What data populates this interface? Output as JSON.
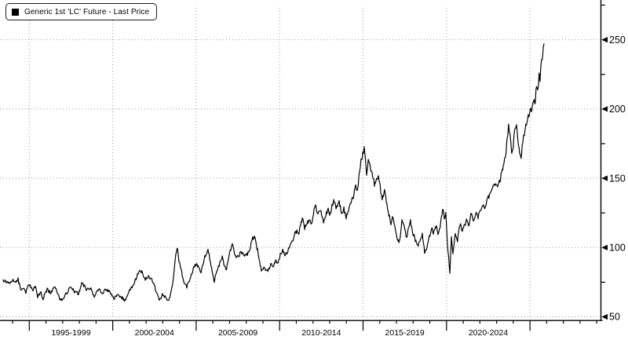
{
  "legend": {
    "label": "Generic 1st 'LC' Future - Last Price",
    "swatch_color": "#000000",
    "position": "top-left"
  },
  "chart_data": {
    "type": "line",
    "title": "Generic 1st 'LC' Future - Last Price",
    "grid": {
      "style": "dotted",
      "color": "#9a9a9a",
      "on": true
    },
    "x_axis": {
      "unit": "year",
      "major_tick_years": [
        1995,
        2000,
        2005,
        2010,
        2015,
        2020,
        2025
      ],
      "minor_tick_step_years": 1,
      "render_year_range": [
        1993.4,
        2029.5
      ],
      "period_labels": [
        {
          "label": "1995-1999",
          "center_year": 1997.5
        },
        {
          "label": "2000-2004",
          "center_year": 2002.5
        },
        {
          "label": "2005-2009",
          "center_year": 2007.5
        },
        {
          "label": "2010-2014",
          "center_year": 2012.5
        },
        {
          "label": "2015-2019",
          "center_year": 2017.5
        },
        {
          "label": "2020-2024",
          "center_year": 2022.5
        }
      ]
    },
    "y_axis": {
      "side": "right",
      "ticks": [
        50,
        100,
        150,
        200,
        250
      ],
      "minor_ticks": [
        75,
        125,
        175,
        225,
        275
      ],
      "range_shown": [
        47,
        278
      ]
    },
    "series": [
      {
        "name": "Generic 1st 'LC' Future - Last Price",
        "color": "#000000",
        "points": [
          [
            1993.43,
            76
          ],
          [
            1993.62,
            75
          ],
          [
            1993.81,
            74
          ],
          [
            1994.0,
            76
          ],
          [
            1994.19,
            75
          ],
          [
            1994.33,
            77
          ],
          [
            1994.47,
            70
          ],
          [
            1994.66,
            71
          ],
          [
            1994.8,
            68
          ],
          [
            1994.99,
            74
          ],
          [
            1995.13,
            70
          ],
          [
            1995.22,
            68
          ],
          [
            1995.36,
            73
          ],
          [
            1995.5,
            64
          ],
          [
            1995.69,
            68
          ],
          [
            1995.83,
            63
          ],
          [
            1996.07,
            70
          ],
          [
            1996.3,
            67
          ],
          [
            1996.54,
            72
          ],
          [
            1996.68,
            68
          ],
          [
            1996.87,
            62
          ],
          [
            1997.01,
            63
          ],
          [
            1997.24,
            67
          ],
          [
            1997.48,
            72
          ],
          [
            1997.71,
            68
          ],
          [
            1997.95,
            67
          ],
          [
            1998.18,
            75
          ],
          [
            1998.42,
            69
          ],
          [
            1998.66,
            71
          ],
          [
            1998.89,
            64
          ],
          [
            1999.13,
            70
          ],
          [
            1999.36,
            67
          ],
          [
            1999.6,
            70
          ],
          [
            1999.83,
            68
          ],
          [
            2000.07,
            63
          ],
          [
            2000.3,
            66
          ],
          [
            2000.54,
            64
          ],
          [
            2000.77,
            61
          ],
          [
            2001.01,
            70
          ],
          [
            2001.24,
            72
          ],
          [
            2001.48,
            81
          ],
          [
            2001.71,
            83
          ],
          [
            2001.95,
            77
          ],
          [
            2002.18,
            79
          ],
          [
            2002.42,
            75
          ],
          [
            2002.56,
            70
          ],
          [
            2002.79,
            62
          ],
          [
            2002.98,
            66
          ],
          [
            2003.17,
            64
          ],
          [
            2003.36,
            61
          ],
          [
            2003.5,
            68
          ],
          [
            2003.64,
            78
          ],
          [
            2003.78,
            95
          ],
          [
            2003.88,
            100
          ],
          [
            2003.97,
            90
          ],
          [
            2004.06,
            86
          ],
          [
            2004.21,
            78
          ],
          [
            2004.35,
            73
          ],
          [
            2004.44,
            72
          ],
          [
            2004.63,
            78
          ],
          [
            2004.82,
            84
          ],
          [
            2005.0,
            89
          ],
          [
            2005.15,
            85
          ],
          [
            2005.29,
            82
          ],
          [
            2005.48,
            92
          ],
          [
            2005.71,
            98
          ],
          [
            2005.85,
            90
          ],
          [
            2005.99,
            80
          ],
          [
            2006.09,
            76
          ],
          [
            2006.23,
            83
          ],
          [
            2006.42,
            89
          ],
          [
            2006.56,
            93
          ],
          [
            2006.7,
            87
          ],
          [
            2006.79,
            83
          ],
          [
            2006.93,
            91
          ],
          [
            2007.08,
            99
          ],
          [
            2007.17,
            102
          ],
          [
            2007.26,
            98
          ],
          [
            2007.4,
            92
          ],
          [
            2007.55,
            94
          ],
          [
            2007.69,
            97
          ],
          [
            2007.83,
            95
          ],
          [
            2007.97,
            94
          ],
          [
            2008.11,
            96
          ],
          [
            2008.25,
            101
          ],
          [
            2008.39,
            107
          ],
          [
            2008.49,
            108
          ],
          [
            2008.58,
            103
          ],
          [
            2008.68,
            98
          ],
          [
            2008.77,
            91
          ],
          [
            2008.91,
            83
          ],
          [
            2009.05,
            85
          ],
          [
            2009.19,
            84
          ],
          [
            2009.33,
            84
          ],
          [
            2009.47,
            88
          ],
          [
            2009.62,
            87
          ],
          [
            2009.76,
            90
          ],
          [
            2009.9,
            89
          ],
          [
            2010.04,
            95
          ],
          [
            2010.18,
            98
          ],
          [
            2010.32,
            94
          ],
          [
            2010.46,
            97
          ],
          [
            2010.6,
            101
          ],
          [
            2010.74,
            104
          ],
          [
            2010.88,
            109
          ],
          [
            2011.03,
            112
          ],
          [
            2011.12,
            109
          ],
          [
            2011.26,
            117
          ],
          [
            2011.36,
            121
          ],
          [
            2011.5,
            114
          ],
          [
            2011.64,
            118
          ],
          [
            2011.78,
            120
          ],
          [
            2011.92,
            116
          ],
          [
            2012.06,
            127
          ],
          [
            2012.16,
            130
          ],
          [
            2012.3,
            123
          ],
          [
            2012.44,
            128
          ],
          [
            2012.63,
            119
          ],
          [
            2012.77,
            124
          ],
          [
            2012.91,
            128
          ],
          [
            2013.0,
            123
          ],
          [
            2013.14,
            130
          ],
          [
            2013.24,
            134
          ],
          [
            2013.38,
            128
          ],
          [
            2013.57,
            133
          ],
          [
            2013.71,
            125
          ],
          [
            2013.85,
            128
          ],
          [
            2013.99,
            122
          ],
          [
            2014.13,
            127
          ],
          [
            2014.27,
            132
          ],
          [
            2014.41,
            137
          ],
          [
            2014.56,
            146
          ],
          [
            2014.65,
            140
          ],
          [
            2014.79,
            155
          ],
          [
            2014.88,
            162
          ],
          [
            2014.98,
            167
          ],
          [
            2015.07,
            171
          ],
          [
            2015.17,
            160
          ],
          [
            2015.21,
            152
          ],
          [
            2015.31,
            164
          ],
          [
            2015.4,
            160
          ],
          [
            2015.54,
            154
          ],
          [
            2015.68,
            146
          ],
          [
            2015.82,
            149
          ],
          [
            2015.92,
            151
          ],
          [
            2016.06,
            141
          ],
          [
            2016.15,
            135
          ],
          [
            2016.29,
            142
          ],
          [
            2016.43,
            131
          ],
          [
            2016.58,
            122
          ],
          [
            2016.67,
            118
          ],
          [
            2016.76,
            122
          ],
          [
            2016.86,
            117
          ],
          [
            2017.0,
            108
          ],
          [
            2017.14,
            104
          ],
          [
            2017.23,
            108
          ],
          [
            2017.33,
            121
          ],
          [
            2017.47,
            114
          ],
          [
            2017.61,
            108
          ],
          [
            2017.75,
            115
          ],
          [
            2017.84,
            119
          ],
          [
            2017.98,
            111
          ],
          [
            2018.13,
            105
          ],
          [
            2018.27,
            101
          ],
          [
            2018.41,
            105
          ],
          [
            2018.55,
            109
          ],
          [
            2018.69,
            97
          ],
          [
            2018.83,
            99
          ],
          [
            2018.97,
            108
          ],
          [
            2019.11,
            114
          ],
          [
            2019.21,
            110
          ],
          [
            2019.3,
            113
          ],
          [
            2019.4,
            116
          ],
          [
            2019.49,
            109
          ],
          [
            2019.58,
            113
          ],
          [
            2019.68,
            121
          ],
          [
            2019.77,
            129
          ],
          [
            2019.87,
            121
          ],
          [
            2019.96,
            124
          ],
          [
            2020.05,
            103
          ],
          [
            2020.2,
            82
          ],
          [
            2020.29,
            107
          ],
          [
            2020.38,
            95
          ],
          [
            2020.52,
            111
          ],
          [
            2020.66,
            105
          ],
          [
            2020.81,
            117
          ],
          [
            2020.95,
            112
          ],
          [
            2021.09,
            116
          ],
          [
            2021.23,
            121
          ],
          [
            2021.32,
            115
          ],
          [
            2021.46,
            124
          ],
          [
            2021.6,
            120
          ],
          [
            2021.75,
            125
          ],
          [
            2021.89,
            122
          ],
          [
            2022.03,
            126
          ],
          [
            2022.17,
            131
          ],
          [
            2022.26,
            128
          ],
          [
            2022.4,
            133
          ],
          [
            2022.54,
            137
          ],
          [
            2022.68,
            142
          ],
          [
            2022.83,
            147
          ],
          [
            2022.97,
            146
          ],
          [
            2023.06,
            143
          ],
          [
            2023.2,
            149
          ],
          [
            2023.34,
            155
          ],
          [
            2023.44,
            160
          ],
          [
            2023.53,
            166
          ],
          [
            2023.63,
            178
          ],
          [
            2023.72,
            187
          ],
          [
            2023.81,
            180
          ],
          [
            2023.91,
            166
          ],
          [
            2024.0,
            174
          ],
          [
            2024.1,
            186
          ],
          [
            2024.19,
            188
          ],
          [
            2024.28,
            178
          ],
          [
            2024.38,
            168
          ],
          [
            2024.47,
            166
          ],
          [
            2024.57,
            176
          ],
          [
            2024.66,
            182
          ],
          [
            2024.75,
            188
          ],
          [
            2024.85,
            192
          ],
          [
            2024.94,
            196
          ],
          [
            2025.03,
            201
          ],
          [
            2025.13,
            199
          ],
          [
            2025.22,
            208
          ],
          [
            2025.32,
            205
          ],
          [
            2025.36,
            215
          ],
          [
            2025.46,
            212
          ],
          [
            2025.55,
            225
          ],
          [
            2025.6,
            222
          ],
          [
            2025.69,
            236
          ],
          [
            2025.74,
            234
          ],
          [
            2025.84,
            247
          ]
        ]
      }
    ]
  }
}
